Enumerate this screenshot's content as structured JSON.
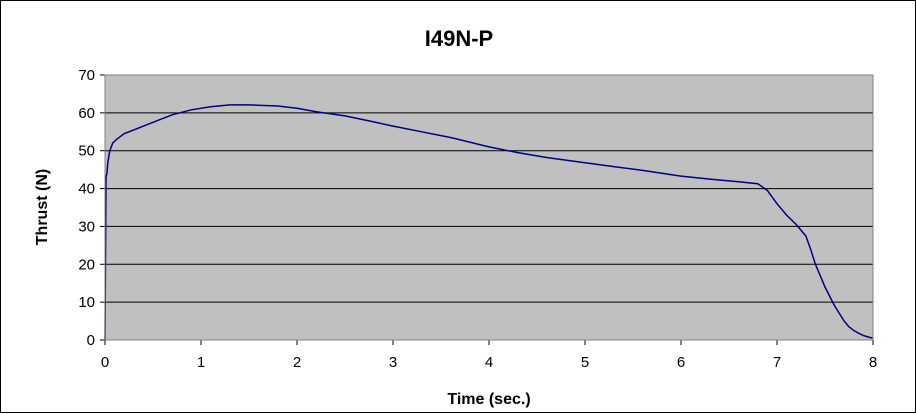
{
  "chart_data": {
    "type": "line",
    "title": "I49N-P",
    "xlabel": "Time (sec.)",
    "ylabel": "Thrust (N)",
    "xlim": [
      0,
      8
    ],
    "ylim": [
      0,
      70
    ],
    "xticks": [
      "0",
      "1",
      "2",
      "3",
      "4",
      "5",
      "6",
      "7",
      "8"
    ],
    "yticks": [
      "0",
      "10",
      "20",
      "30",
      "40",
      "50",
      "60",
      "70"
    ],
    "grid": "horizontal",
    "legend": "none",
    "colors": {
      "plot_bg": "#c0c0c0",
      "line": "#000080",
      "grid": "#000000"
    },
    "series": [
      {
        "x": [
          0.0,
          0.01,
          0.02,
          0.03,
          0.05,
          0.08,
          0.12,
          0.2,
          0.3,
          0.5,
          0.7,
          0.9,
          1.1,
          1.3,
          1.5,
          1.8,
          2.0,
          2.2,
          2.5,
          2.8,
          3.0,
          3.3,
          3.6,
          4.0,
          4.3,
          4.6,
          5.0,
          5.3,
          5.6,
          6.0,
          6.3,
          6.6,
          6.8,
          6.9,
          7.0,
          7.1,
          7.2,
          7.3,
          7.35,
          7.4,
          7.45,
          7.5,
          7.55,
          7.6,
          7.65,
          7.7,
          7.75,
          7.8,
          7.85,
          7.9,
          7.95,
          8.0
        ],
        "y": [
          0,
          43,
          44,
          47,
          50,
          52,
          53,
          54.5,
          55.5,
          57.5,
          59.5,
          60.8,
          61.6,
          62.1,
          62.1,
          61.8,
          61.2,
          60.3,
          59.2,
          57.6,
          56.5,
          55,
          53.5,
          51,
          49.5,
          48.2,
          46.8,
          45.8,
          44.8,
          43.3,
          42.5,
          41.8,
          41.3,
          39.5,
          36,
          33,
          30.5,
          27.5,
          24,
          20,
          17,
          14,
          11.5,
          9,
          7,
          5,
          3.5,
          2.5,
          1.8,
          1.2,
          0.8,
          0.5
        ]
      }
    ]
  }
}
